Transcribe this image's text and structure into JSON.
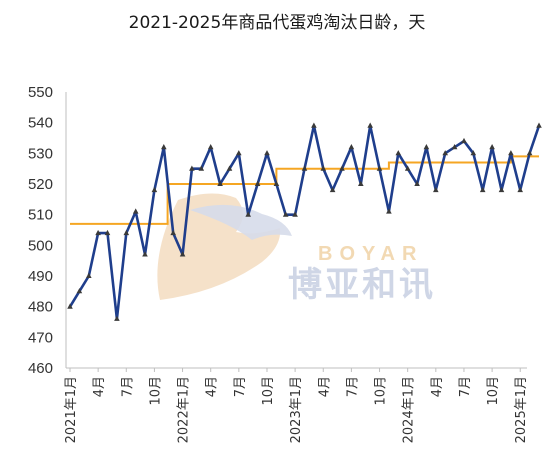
{
  "chart_data": {
    "type": "line",
    "title": "2021-2025年商品代蛋鸡淘汰日龄，天",
    "xlabel": "",
    "ylabel": "",
    "ylim": [
      460,
      550
    ],
    "yticks": [
      460,
      470,
      480,
      490,
      500,
      510,
      520,
      530,
      540,
      550
    ],
    "x_tick_labels": [
      "2021年1月",
      "4月",
      "7月",
      "10月",
      "2022年1月",
      "4月",
      "7月",
      "10月",
      "2023年1月",
      "4月",
      "7月",
      "10月",
      "2024年1月",
      "4月",
      "7月",
      "10月",
      "2025年1月"
    ],
    "x_tick_index": [
      0,
      3,
      6,
      9,
      12,
      15,
      18,
      21,
      24,
      27,
      30,
      33,
      36,
      39,
      42,
      45,
      48
    ],
    "grid": false,
    "legend": "none",
    "colors": {
      "monthly": "#1f3e8c",
      "annual_avg": "#f5a623",
      "axis": "#bfbfbf"
    },
    "series": [
      {
        "kind": "monthly",
        "values": [
          480,
          485,
          490,
          504,
          504,
          476,
          504,
          511,
          497,
          518,
          532,
          504,
          497,
          525,
          525,
          532,
          520,
          525,
          530,
          510,
          520,
          530,
          520,
          510,
          510,
          525,
          539,
          525,
          518,
          525,
          532,
          520,
          539,
          525,
          511,
          530,
          525,
          520,
          532,
          518,
          530,
          532,
          534,
          530,
          518,
          532,
          518,
          530,
          518,
          530,
          539
        ]
      },
      {
        "kind": "annual_avg",
        "steps": [
          {
            "from": 0,
            "to": 9,
            "value": 507
          },
          {
            "from": 9,
            "to": 10.4,
            "value": 507
          },
          {
            "from": 10.4,
            "to": 21,
            "value": 520
          },
          {
            "from": 21,
            "to": 22,
            "value": 520
          },
          {
            "from": 22,
            "to": 33,
            "value": 525
          },
          {
            "from": 33,
            "to": 34,
            "value": 525
          },
          {
            "from": 34,
            "to": 46,
            "value": 527
          },
          {
            "from": 46,
            "to": 47,
            "value": 527
          },
          {
            "from": 47,
            "to": 50,
            "value": 529
          }
        ]
      }
    ]
  },
  "watermark": {
    "latin": "BOYAR",
    "cjk": "博亚和讯"
  }
}
